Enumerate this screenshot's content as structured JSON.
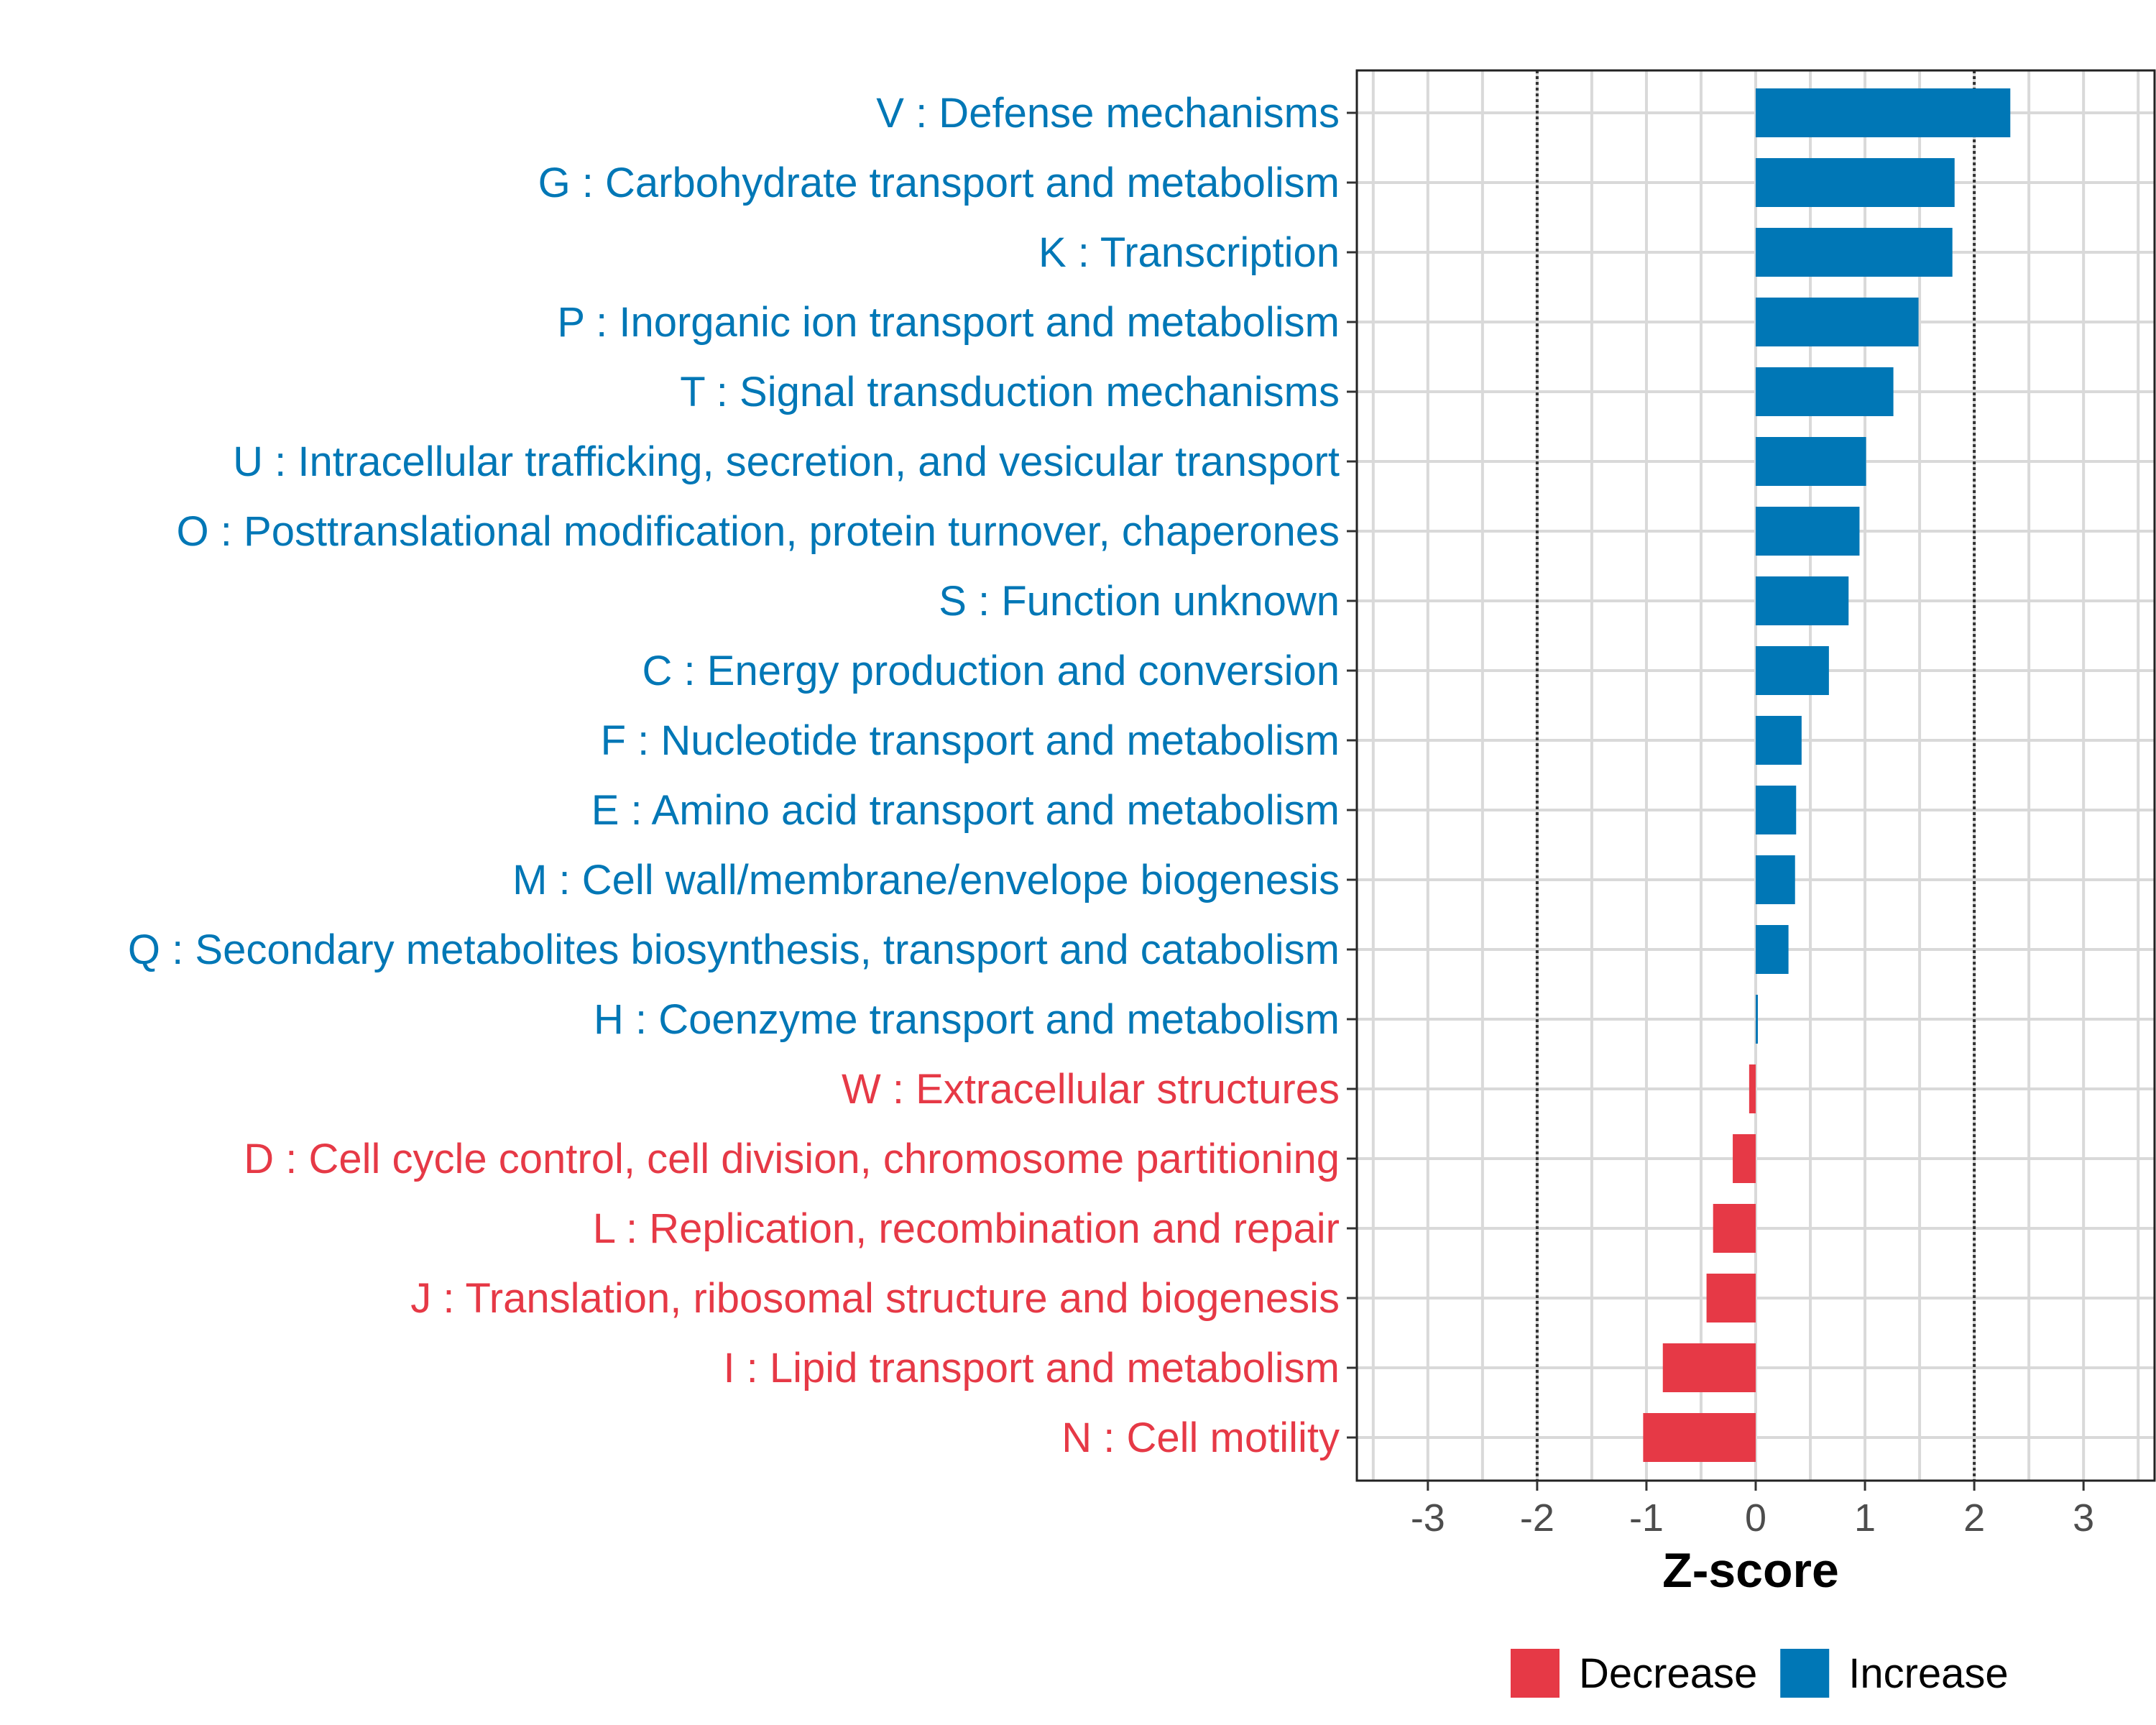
{
  "chart_data": {
    "type": "bar",
    "orientation": "horizontal",
    "title": "",
    "xlabel": "Z-score",
    "ylabel": "",
    "xlim": [
      -3.65,
      3.65
    ],
    "xticks": [
      -3,
      -2,
      -1,
      0,
      1,
      2,
      3
    ],
    "tick_labels": [
      "-3",
      "-2",
      "-1",
      "0",
      "1",
      "2",
      "3"
    ],
    "reference_lines": [
      -2,
      2
    ],
    "grid": true,
    "categories": [
      "V : Defense mechanisms",
      "G : Carbohydrate transport and metabolism",
      "K : Transcription",
      "P : Inorganic ion transport and metabolism",
      "T : Signal transduction mechanisms",
      "U : Intracellular trafficking, secretion, and vesicular transport",
      "O : Posttranslational modification, protein turnover, chaperones",
      "S : Function unknown",
      "C : Energy production and conversion",
      "F : Nucleotide transport and metabolism",
      "E : Amino acid transport and metabolism",
      "M : Cell wall/membrane/envelope biogenesis",
      "Q : Secondary metabolites biosynthesis, transport and catabolism",
      "H : Coenzyme transport and metabolism",
      "W : Extracellular structures",
      "D : Cell cycle control, cell division, chromosome partitioning",
      "L : Replication, recombination and repair",
      "J : Translation, ribosomal structure and biogenesis",
      "I : Lipid transport and metabolism",
      "N : Cell motility"
    ],
    "values": [
      2.33,
      1.82,
      1.8,
      1.49,
      1.26,
      1.01,
      0.95,
      0.85,
      0.67,
      0.42,
      0.37,
      0.36,
      0.3,
      0.01,
      -0.06,
      -0.21,
      -0.39,
      -0.45,
      -0.85,
      -1.03
    ],
    "groups": [
      "Increase",
      "Increase",
      "Increase",
      "Increase",
      "Increase",
      "Increase",
      "Increase",
      "Increase",
      "Increase",
      "Increase",
      "Increase",
      "Increase",
      "Increase",
      "Increase",
      "Decrease",
      "Decrease",
      "Decrease",
      "Decrease",
      "Decrease",
      "Decrease"
    ],
    "legend": {
      "position": "bottom",
      "entries": [
        {
          "name": "Decrease",
          "color": "#e63946"
        },
        {
          "name": "Increase",
          "color": "#0077b6"
        }
      ]
    },
    "colors": {
      "Decrease": "#e63946",
      "Increase": "#0077b6"
    }
  }
}
